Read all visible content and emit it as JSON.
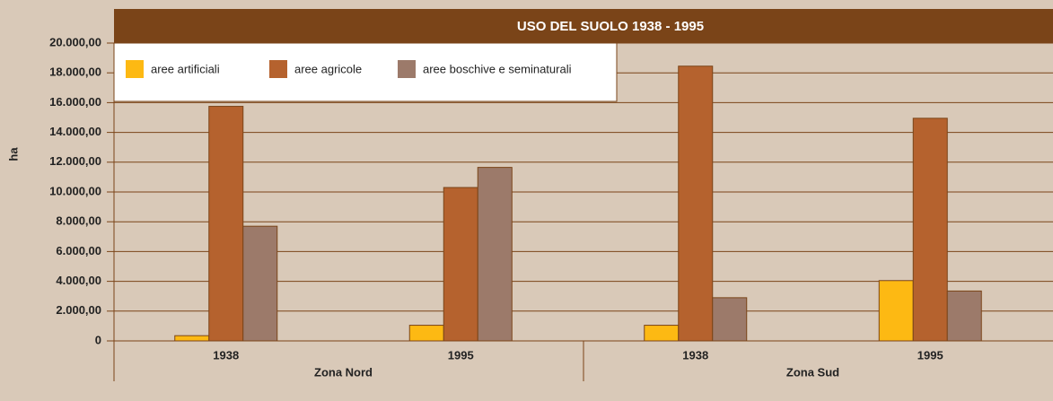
{
  "chart_data": {
    "type": "bar",
    "title": "USO DEL SUOLO 1938 - 1995",
    "ylabel": "ha",
    "categories": [
      "1938",
      "1995",
      "1938",
      "1995"
    ],
    "groups": [
      "Zona Nord",
      "Zona Sud"
    ],
    "series": [
      {
        "name": "aree artificiali",
        "color": "#fdb913",
        "values": [
          350,
          1050,
          1050,
          4050
        ]
      },
      {
        "name": "aree agricole",
        "color": "#b5622e",
        "values": [
          15750,
          10300,
          18450,
          14950
        ]
      },
      {
        "name": "aree boschive e seminaturali",
        "color": "#9c7a6a",
        "values": [
          7700,
          11650,
          2900,
          3350
        ]
      }
    ],
    "ylim": [
      0,
      20000
    ],
    "yticks": [
      0,
      {
        "value": 2000,
        "label": "2.000,00"
      },
      {
        "value": 4000,
        "label": "4.000,00"
      },
      {
        "value": 6000,
        "label": "6.000,00"
      },
      {
        "value": 8000,
        "label": "8.000,00"
      },
      {
        "value": 10000,
        "label": "10.000,00"
      },
      {
        "value": 12000,
        "label": "12.000,00"
      },
      {
        "value": 14000,
        "label": "14.000,00"
      },
      {
        "value": 16000,
        "label": "16.000,00"
      },
      {
        "value": 18000,
        "label": "18.000,00"
      },
      {
        "value": 20000,
        "label": "20.000,00"
      }
    ],
    "grid": true,
    "legend": "top-left"
  }
}
